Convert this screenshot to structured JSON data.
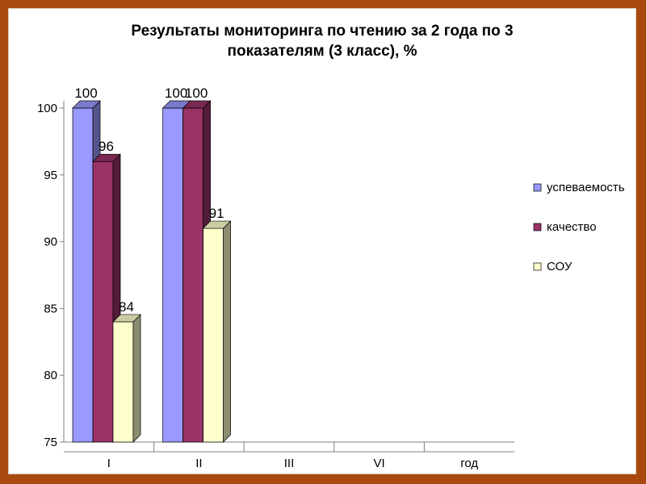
{
  "chart_data": {
    "type": "bar",
    "title": "Результаты мониторинга по чтению за 2 года по 3",
    "subtitle": "показателям (3 класс), %",
    "categories": [
      "I",
      "II",
      "III",
      "VI",
      "год"
    ],
    "series": [
      {
        "name": "успеваемость",
        "color": "#9999ff",
        "values": [
          100,
          100,
          null,
          null,
          null
        ]
      },
      {
        "name": "качество",
        "color": "#993366",
        "values": [
          96,
          100,
          null,
          null,
          null
        ]
      },
      {
        "name": "СОУ",
        "color": "#ffffcc",
        "values": [
          84,
          91,
          null,
          null,
          null
        ]
      }
    ],
    "data_labels": [
      [
        "100",
        "96",
        "84"
      ],
      [
        "100",
        "100",
        "91"
      ]
    ],
    "ylim": [
      75,
      100
    ],
    "yticks": [
      "75",
      "80",
      "85",
      "90",
      "95",
      "100"
    ],
    "grid": false,
    "style": "3d-clustered",
    "legend_position": "right"
  }
}
